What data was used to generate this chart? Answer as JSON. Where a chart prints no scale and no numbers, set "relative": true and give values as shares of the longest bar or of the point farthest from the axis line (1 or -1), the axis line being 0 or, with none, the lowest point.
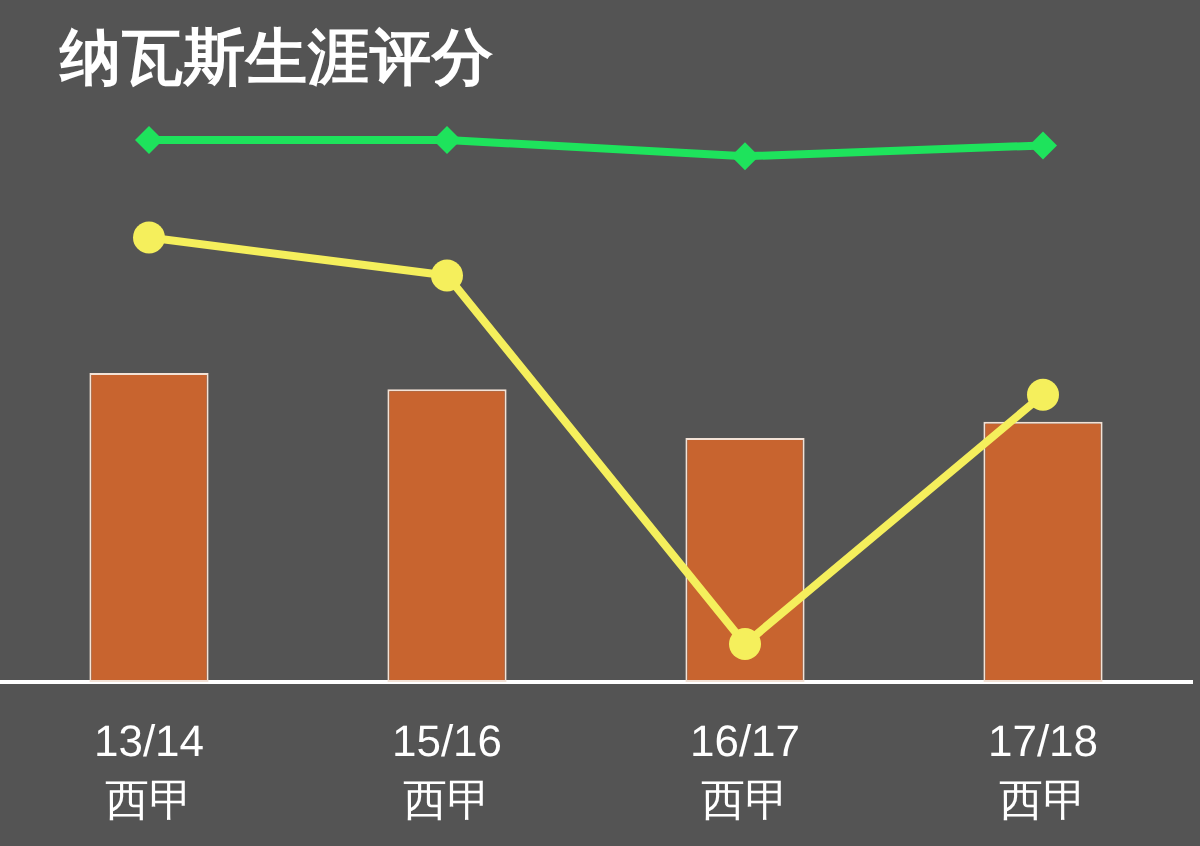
{
  "chart_data": {
    "type": "bar",
    "title": "纳瓦斯生涯评分",
    "relative": true,
    "categories": [
      "13/14\n西甲",
      "15/16\n西甲",
      "16/17\n西甲",
      "17/18\n西甲"
    ],
    "series": [
      {
        "color": "#c8642f",
        "values": [
          0.57,
          0.54,
          0.45,
          0.48
        ]
      },
      {
        "type": "line",
        "color": "#f5ef5c",
        "marker": "circle",
        "values": [
          0.82,
          0.75,
          0.07,
          0.53
        ]
      },
      {
        "type": "line",
        "color": "#1ee35c",
        "marker": "diamond",
        "values": [
          1,
          1,
          0.97,
          0.99
        ]
      }
    ]
  }
}
